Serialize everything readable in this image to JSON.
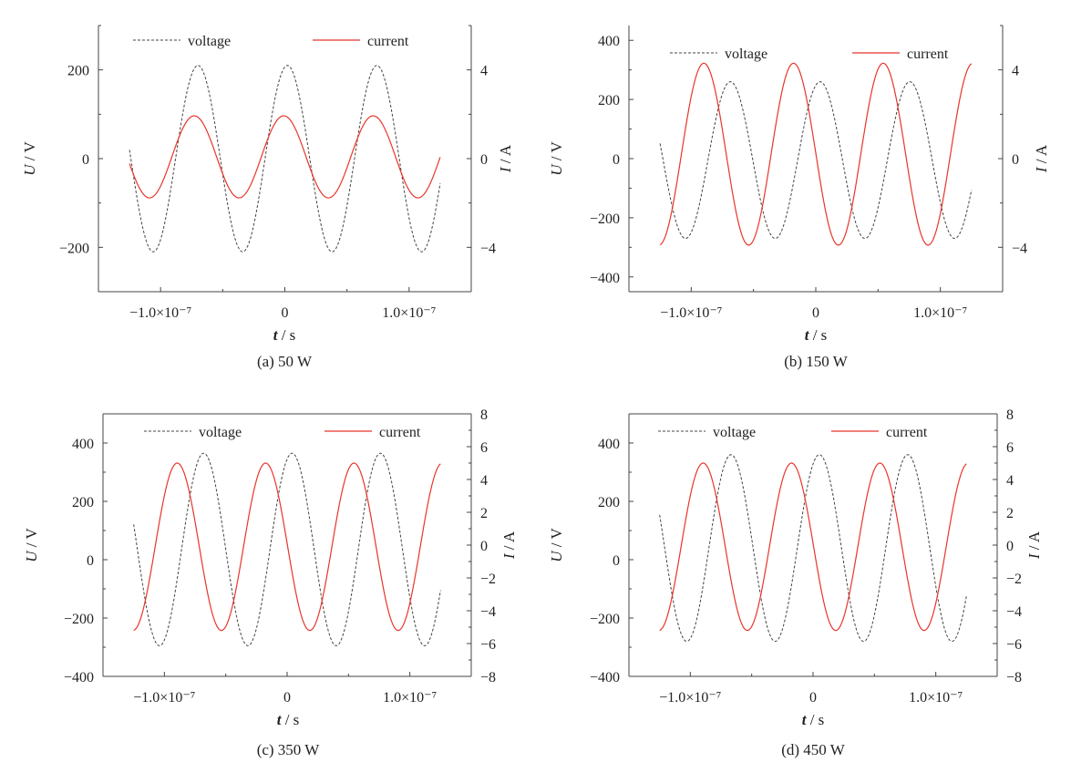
{
  "figure": {
    "x_unit_symbol": "t",
    "x_unit": " / s",
    "y1_symbol": "U",
    "y1_unit": " / V",
    "y2_symbol": "I",
    "y2_unit": " / A",
    "legend_voltage": "voltage",
    "legend_current": "current",
    "voltage_color": "#444444",
    "current_color": "#e8352c"
  },
  "chart_data": [
    {
      "type": "line",
      "caption": "(a) 50 W",
      "xlim": [
        -1.5e-07,
        1.5e-07
      ],
      "xticks": [
        -1e-07,
        0,
        1e-07
      ],
      "xtick_labels": [
        "−1.0×10⁻⁷",
        "0",
        "1.0×10⁻⁷"
      ],
      "y1lim": [
        -300,
        300
      ],
      "y1ticks": [
        -200,
        0,
        200
      ],
      "y1tick_labels": [
        "−200",
        "0",
        "200"
      ],
      "y2lim": [
        -6,
        6
      ],
      "y2ticks": [
        -4,
        0,
        4
      ],
      "y2tick_labels": [
        "−4",
        "0",
        "4"
      ],
      "series": [
        {
          "name": "voltage",
          "axis": "left",
          "amplitude": 210,
          "offset": 0,
          "phase": 1.39,
          "period": 7.2e-08,
          "x_range": [
            -1.25e-07,
            1.25e-07
          ]
        },
        {
          "name": "current",
          "axis": "right",
          "amplitude": 1.85,
          "offset": 0.08,
          "phase": 1.65,
          "period": 7.2e-08,
          "x_range": [
            -1.25e-07,
            1.25e-07
          ]
        }
      ]
    },
    {
      "type": "line",
      "caption": "(b) 150 W",
      "xlim": [
        -1.5e-07,
        1.5e-07
      ],
      "xticks": [
        -1e-07,
        0,
        1e-07
      ],
      "xtick_labels": [
        "−1.0×10⁻⁷",
        "0",
        "1.0×10⁻⁷"
      ],
      "y1lim": [
        -450,
        450
      ],
      "y1ticks": [
        -400,
        -200,
        0,
        200,
        400
      ],
      "y1tick_labels": [
        "−400",
        "−200",
        "0",
        "200",
        "400"
      ],
      "y2lim": [
        -6,
        6
      ],
      "y2ticks": [
        -4,
        0,
        4
      ],
      "y2tick_labels": [
        "−4",
        "0",
        "4"
      ],
      "series": [
        {
          "name": "voltage",
          "axis": "left",
          "amplitude": 265,
          "offset": -5,
          "phase": 1.27,
          "period": 7.2e-08,
          "x_range": [
            -1.25e-07,
            1.25e-07
          ]
        },
        {
          "name": "current",
          "axis": "right",
          "amplitude": 4.1,
          "offset": 0.2,
          "phase": 3.13,
          "period": 7.2e-08,
          "x_range": [
            -1.25e-07,
            1.25e-07
          ]
        }
      ]
    },
    {
      "type": "line",
      "caption": "(c) 350 W",
      "xlim": [
        -1.5e-07,
        1.5e-07
      ],
      "xticks": [
        -1e-07,
        0,
        1e-07
      ],
      "xtick_labels": [
        "−1.0×10⁻⁷",
        "0",
        "1.0×10⁻⁷"
      ],
      "y1lim": [
        -400,
        500
      ],
      "y1ticks": [
        -400,
        -200,
        0,
        200,
        400
      ],
      "y1tick_labels": [
        "−400",
        "−200",
        "0",
        "200",
        "400"
      ],
      "y2lim": [
        -8,
        8
      ],
      "y2ticks": [
        -8,
        -6,
        -4,
        -2,
        0,
        2,
        4,
        6,
        8
      ],
      "y2tick_labels": [
        "−8",
        "−6",
        "−4",
        "−2",
        "0",
        "2",
        "4",
        "6",
        "8"
      ],
      "series": [
        {
          "name": "voltage",
          "axis": "left",
          "amplitude": 330,
          "offset": 35,
          "phase": 1.22,
          "period": 7.2e-08,
          "x_range": [
            -1.25e-07,
            1.25e-07
          ]
        },
        {
          "name": "current",
          "axis": "right",
          "amplitude": 5.1,
          "offset": -0.1,
          "phase": 3.1,
          "period": 7.2e-08,
          "x_range": [
            -1.25e-07,
            1.25e-07
          ]
        }
      ]
    },
    {
      "type": "line",
      "caption": "(d) 450 W",
      "xlim": [
        -1.5e-07,
        1.5e-07
      ],
      "xticks": [
        -1e-07,
        0,
        1e-07
      ],
      "xtick_labels": [
        "−1.0×10⁻⁷",
        "0",
        "1.0×10⁻⁷"
      ],
      "y1lim": [
        -400,
        500
      ],
      "y1ticks": [
        -400,
        -200,
        0,
        200,
        400
      ],
      "y1tick_labels": [
        "−400",
        "−200",
        "0",
        "200",
        "400"
      ],
      "y2lim": [
        -8,
        8
      ],
      "y2ticks": [
        -8,
        -6,
        -4,
        -2,
        0,
        2,
        4,
        6,
        8
      ],
      "y2tick_labels": [
        "−8",
        "−6",
        "−4",
        "−2",
        "0",
        "2",
        "4",
        "6",
        "8"
      ],
      "series": [
        {
          "name": "voltage",
          "axis": "left",
          "amplitude": 320,
          "offset": 40,
          "phase": 1.12,
          "period": 7.2e-08,
          "x_range": [
            -1.25e-07,
            1.25e-07
          ]
        },
        {
          "name": "current",
          "axis": "right",
          "amplitude": 5.1,
          "offset": -0.1,
          "phase": 3.1,
          "period": 7.2e-08,
          "x_range": [
            -1.25e-07,
            1.25e-07
          ]
        }
      ]
    }
  ]
}
